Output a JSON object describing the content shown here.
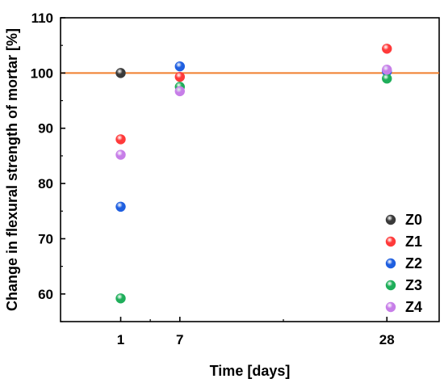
{
  "chart_data": {
    "type": "scatter",
    "xlabel": "Time [days]",
    "ylabel": "Change in flexural strength of mortar [%]",
    "x_ticks": [
      1,
      7,
      28
    ],
    "y_ticks": [
      60,
      70,
      80,
      90,
      100,
      110
    ],
    "xlim": [
      -5.1,
      33.3
    ],
    "ylim": [
      55,
      110
    ],
    "grid": false,
    "legend_position": "bottom-right",
    "reference_line": {
      "y": 100,
      "color": "#f07f2d"
    },
    "series": [
      {
        "name": "Z0",
        "color": "#3a3a3a",
        "x": [
          1
        ],
        "y": [
          100.0
        ]
      },
      {
        "name": "Z1",
        "color": "#ff3a3a",
        "x": [
          1,
          7,
          28
        ],
        "y": [
          88.0,
          99.3,
          104.4
        ]
      },
      {
        "name": "Z2",
        "color": "#1f5fe0",
        "x": [
          1,
          7,
          28
        ],
        "y": [
          75.8,
          101.2,
          100.3
        ]
      },
      {
        "name": "Z3",
        "color": "#1fae5a",
        "x": [
          1,
          7,
          28
        ],
        "y": [
          59.2,
          97.5,
          99.0
        ]
      },
      {
        "name": "Z4",
        "color": "#c77ee8",
        "x": [
          1,
          7,
          28
        ],
        "y": [
          85.2,
          96.7,
          100.6
        ]
      }
    ]
  }
}
